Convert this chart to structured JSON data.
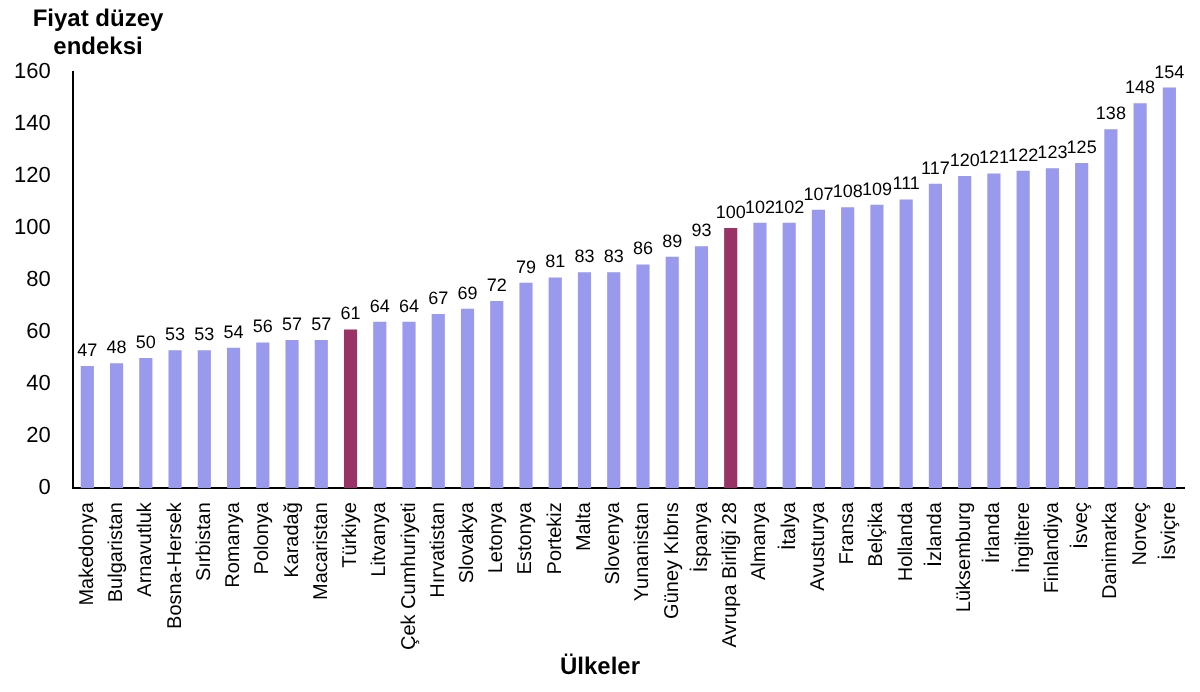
{
  "chart_data": {
    "type": "bar",
    "ylabel": "Fiyat düzey endeksi",
    "xlabel": "Ülkeler",
    "categories": [
      "Makedonya",
      "Bulgaristan",
      "Arnavutluk",
      "Bosna-Hersek",
      "Sırbistan",
      "Romanya",
      "Polonya",
      "Karadağ",
      "Macaristan",
      "Türkiye",
      "Litvanya",
      "Çek Cumhuriyeti",
      "Hırvatistan",
      "Slovakya",
      "Letonya",
      "Estonya",
      "Portekiz",
      "Malta",
      "Slovenya",
      "Yunanistan",
      "Güney Kıbrıs",
      "İspanya",
      "Avrupa Birliği 28",
      "Almanya",
      "İtalya",
      "Avusturya",
      "Fransa",
      "Belçika",
      "Hollanda",
      "İzlanda",
      "Lüksemburg",
      "İrlanda",
      "İngiltere",
      "Finlandiya",
      "İsveç",
      "Danimarka",
      "Norveç",
      "İsviçre"
    ],
    "values": [
      47,
      48,
      50,
      53,
      53,
      54,
      56,
      57,
      57,
      61,
      64,
      64,
      67,
      69,
      72,
      79,
      81,
      83,
      83,
      86,
      89,
      93,
      100,
      102,
      102,
      107,
      108,
      109,
      111,
      117,
      120,
      121,
      122,
      123,
      125,
      138,
      148,
      154
    ],
    "colors": [
      "#9999ee",
      "#9999ee",
      "#9999ee",
      "#9999ee",
      "#9999ee",
      "#9999ee",
      "#9999ee",
      "#9999ee",
      "#9999ee",
      "#993366",
      "#9999ee",
      "#9999ee",
      "#9999ee",
      "#9999ee",
      "#9999ee",
      "#9999ee",
      "#9999ee",
      "#9999ee",
      "#9999ee",
      "#9999ee",
      "#9999ee",
      "#9999ee",
      "#993366",
      "#9999ee",
      "#9999ee",
      "#9999ee",
      "#9999ee",
      "#9999ee",
      "#9999ee",
      "#9999ee",
      "#9999ee",
      "#9999ee",
      "#9999ee",
      "#9999ee",
      "#9999ee",
      "#9999ee",
      "#9999ee",
      "#9999ee"
    ],
    "ylim": [
      0,
      160
    ],
    "yticks": [
      0,
      20,
      40,
      60,
      80,
      100,
      120,
      140,
      160
    ],
    "data_labels": true,
    "grid": false,
    "legend": false
  }
}
